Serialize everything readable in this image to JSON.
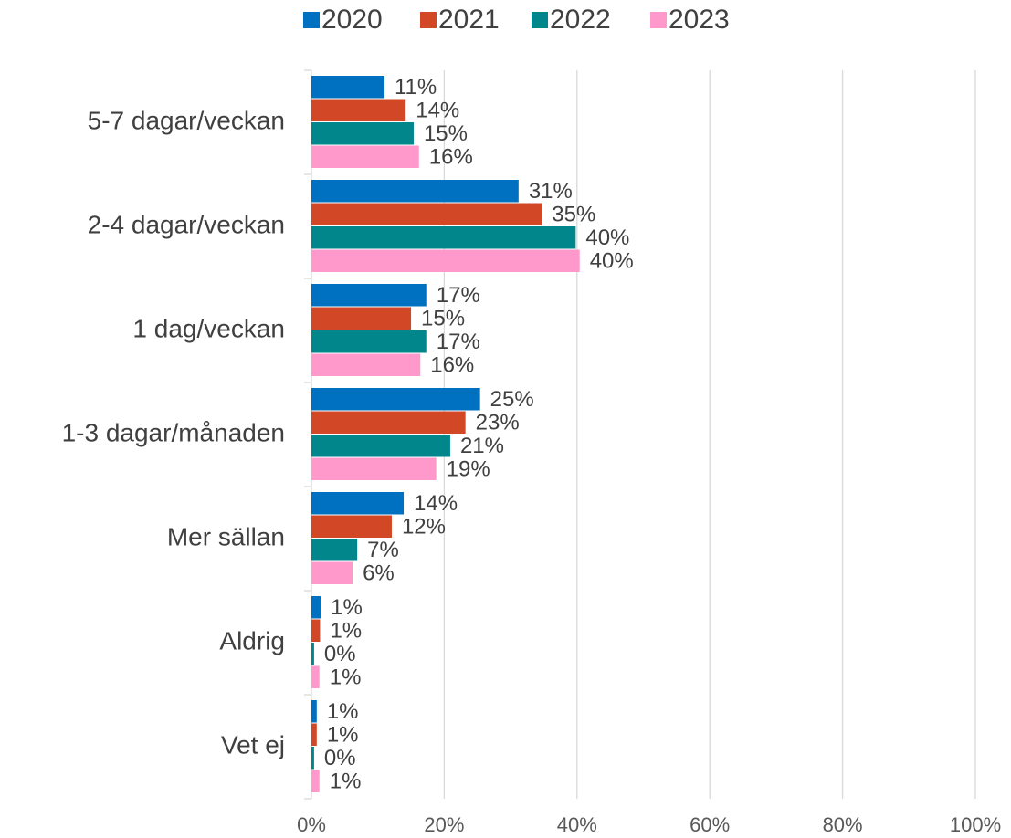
{
  "chart_data": {
    "type": "bar",
    "orientation": "horizontal",
    "categories": [
      "5-7 dagar/veckan",
      "2-4 dagar/veckan",
      "1 dag/veckan",
      "1-3 dagar/månaden",
      "Mer sällan",
      "Aldrig",
      "Vet ej"
    ],
    "series": [
      {
        "name": "2020",
        "color": "#0070c0",
        "values": [
          11.0,
          31.2,
          17.3,
          25.4,
          13.9,
          1.4,
          0.8
        ],
        "value_labels": [
          "11%",
          "31%",
          "17%",
          "25%",
          "14%",
          "1%",
          "1%"
        ]
      },
      {
        "name": "2021",
        "color": "#d24726",
        "values": [
          14.2,
          34.7,
          15.0,
          23.2,
          12.1,
          1.3,
          0.8
        ],
        "value_labels": [
          "14%",
          "35%",
          "15%",
          "23%",
          "12%",
          "1%",
          "1%"
        ]
      },
      {
        "name": "2022",
        "color": "#00868b",
        "values": [
          15.4,
          39.8,
          17.3,
          20.9,
          6.9,
          0.4,
          0.4
        ],
        "value_labels": [
          "15%",
          "40%",
          "17%",
          "21%",
          "7%",
          "0%",
          "0%"
        ]
      },
      {
        "name": "2023",
        "color": "#ff99cc",
        "values": [
          16.2,
          40.4,
          16.4,
          18.8,
          6.2,
          1.2,
          1.2
        ],
        "value_labels": [
          "16%",
          "40%",
          "16%",
          "19%",
          "6%",
          "1%",
          "1%"
        ]
      }
    ],
    "xlim": [
      0,
      100
    ],
    "xticks": [
      {
        "value": 0,
        "label": "0%"
      },
      {
        "value": 20,
        "label": "20%"
      },
      {
        "value": 40,
        "label": "40%"
      },
      {
        "value": 60,
        "label": "60%"
      },
      {
        "value": 80,
        "label": "80%"
      },
      {
        "value": 100,
        "label": "100%"
      }
    ],
    "grid": true,
    "legend": "top"
  }
}
